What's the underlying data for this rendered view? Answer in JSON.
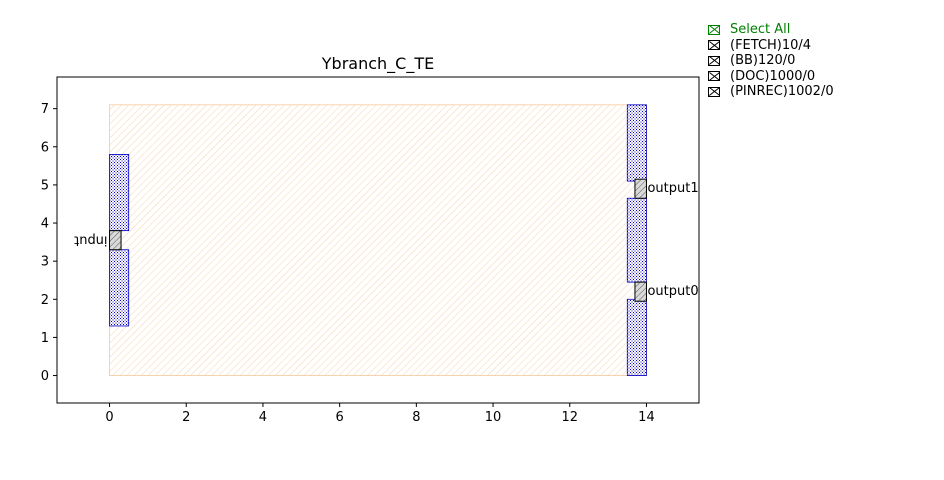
{
  "chart_data": {
    "type": "diagram",
    "title": "Ybranch_C_TE",
    "xlim": [
      -1.37,
      15.37
    ],
    "ylim": [
      -0.72,
      7.83
    ],
    "x_ticks": [
      0,
      2,
      4,
      6,
      8,
      10,
      12,
      14
    ],
    "y_ticks": [
      0,
      1,
      2,
      3,
      4,
      5,
      6,
      7
    ],
    "grid": false,
    "floorplan": {
      "x": [
        0,
        14
      ],
      "y": [
        0,
        7.1
      ],
      "color": "#f5c89a"
    },
    "waveguides": [
      {
        "x": [
          0,
          0.5
        ],
        "y": [
          1.3,
          3.3
        ]
      },
      {
        "x": [
          0,
          0.5
        ],
        "y": [
          3.8,
          5.8
        ]
      },
      {
        "x": [
          13.5,
          14.0
        ],
        "y": [
          0,
          2.0
        ]
      },
      {
        "x": [
          13.5,
          14.0
        ],
        "y": [
          2.45,
          4.65
        ]
      },
      {
        "x": [
          13.5,
          14.0
        ],
        "y": [
          5.1,
          7.1
        ]
      }
    ],
    "pins": [
      {
        "name": "input",
        "x": [
          0,
          0.3
        ],
        "y": [
          3.3,
          3.8
        ],
        "label_side": "left",
        "label_mirrored": true
      },
      {
        "name": "output0",
        "x": [
          13.7,
          14.0
        ],
        "y": [
          1.95,
          2.45
        ],
        "label_side": "right"
      },
      {
        "name": "output1",
        "x": [
          13.7,
          14.0
        ],
        "y": [
          4.65,
          5.15
        ],
        "label_side": "right"
      }
    ],
    "colors": {
      "waveguide": "#0000cc",
      "pin": "#444444",
      "axes": "#000000"
    }
  },
  "legend": {
    "select_all": "Select All",
    "layers": [
      "(FETCH)10/4",
      "(BB)120/0",
      "(DOC)1000/0",
      "(PINREC)1002/0"
    ]
  }
}
